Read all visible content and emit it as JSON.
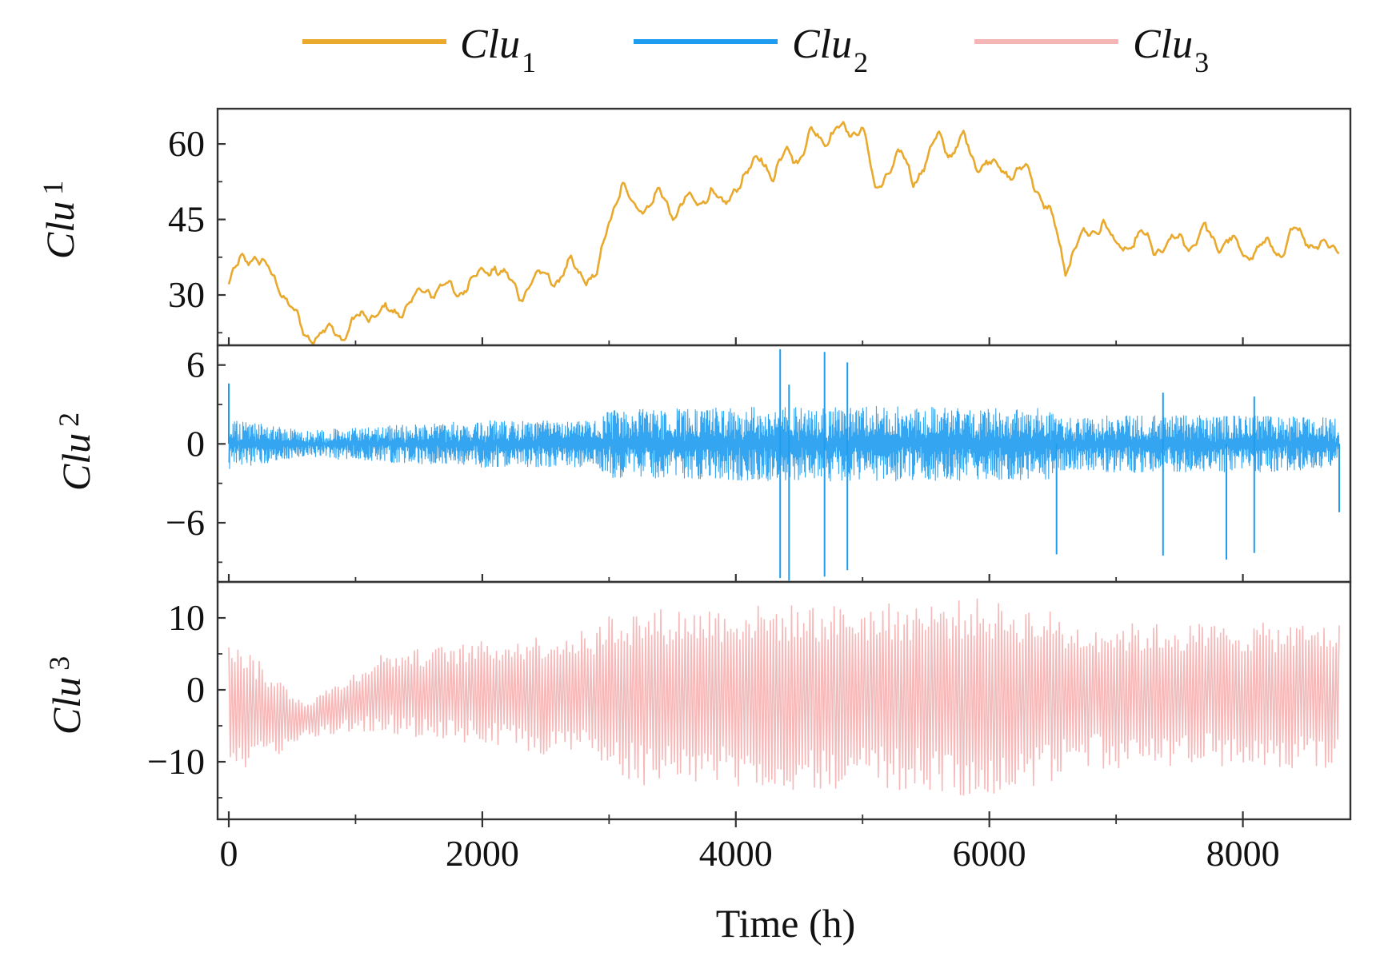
{
  "chart_data": {
    "type": "line",
    "xlabel": "Time (h)",
    "xlim": [
      0,
      8760
    ],
    "x_ticks": [
      "0",
      "2000",
      "4000",
      "6000",
      "8000"
    ],
    "x_tick_values": [
      0,
      2000,
      4000,
      6000,
      8000
    ],
    "legend": [
      {
        "name": "Clu",
        "sub": "1",
        "color": "#E8A92C"
      },
      {
        "name": "Clu",
        "sub": "2",
        "color": "#1E9CF0"
      },
      {
        "name": "Clu",
        "sub": "3",
        "color": "#F6B5B5"
      }
    ],
    "panels": [
      {
        "ylabel": "Clu",
        "ylabel_sub": "1",
        "color": "#E8A92C",
        "ylim": [
          20,
          67
        ],
        "y_ticks": [
          "30",
          "45",
          "60"
        ],
        "y_tick_values": [
          30,
          45,
          60
        ],
        "series_kind": "trend",
        "x": [
          0,
          100,
          200,
          300,
          400,
          500,
          600,
          700,
          800,
          900,
          1000,
          1100,
          1200,
          1300,
          1400,
          1500,
          1600,
          1700,
          1800,
          1900,
          2000,
          2100,
          2200,
          2300,
          2400,
          2500,
          2600,
          2700,
          2800,
          2900,
          3000,
          3100,
          3200,
          3300,
          3400,
          3500,
          3600,
          3700,
          3800,
          3900,
          4000,
          4100,
          4200,
          4300,
          4400,
          4500,
          4600,
          4700,
          4800,
          4900,
          5000,
          5100,
          5200,
          5300,
          5400,
          5500,
          5600,
          5700,
          5800,
          5900,
          6000,
          6100,
          6200,
          6300,
          6400,
          6500,
          6600,
          6700,
          6800,
          6900,
          7000,
          7100,
          7200,
          7300,
          7400,
          7500,
          7600,
          7700,
          7800,
          7900,
          8000,
          8100,
          8200,
          8300,
          8400,
          8500,
          8600,
          8700,
          8760
        ],
        "values": [
          32,
          37,
          38,
          35,
          32,
          27,
          22,
          22,
          23,
          22,
          25,
          26,
          27,
          26,
          28,
          30,
          31,
          32,
          30,
          33,
          34,
          36,
          33,
          30,
          33,
          34,
          33,
          36,
          34,
          33,
          45,
          52,
          47,
          48,
          50,
          46,
          49,
          48,
          51,
          47,
          52,
          54,
          58,
          53,
          59,
          57,
          62,
          61,
          63,
          62,
          64,
          50,
          55,
          58,
          53,
          56,
          62,
          58,
          61,
          56,
          56,
          55,
          54,
          55,
          50,
          45,
          35,
          41,
          42,
          45,
          39,
          40,
          42,
          39,
          40,
          41,
          40,
          43,
          40,
          41,
          38,
          39,
          40,
          38,
          43,
          41,
          40,
          39,
          40
        ],
        "noise_amp": 1.4
      },
      {
        "ylabel": "Clu",
        "ylabel_sub": "2",
        "color": "#1E9CF0",
        "ylim": [
          -10.5,
          7.5
        ],
        "y_ticks": [
          "−6",
          "0",
          "6"
        ],
        "y_tick_values": [
          -6,
          0,
          6
        ],
        "series_kind": "noise",
        "envelope_x": [
          0,
          600,
          1000,
          2000,
          2900,
          3000,
          4000,
          5000,
          6000,
          6500,
          6600,
          7000,
          8000,
          8760
        ],
        "envelope_amp": [
          2.0,
          1.0,
          1.3,
          1.8,
          1.8,
          2.6,
          2.8,
          2.9,
          2.8,
          2.7,
          2.0,
          2.2,
          2.2,
          2.0
        ],
        "spikes": [
          {
            "x": 0,
            "value": 4.6
          },
          {
            "x": 4350,
            "value": 7.2
          },
          {
            "x": 4350,
            "value": -10.2
          },
          {
            "x": 4420,
            "value": -10.4
          },
          {
            "x": 4420,
            "value": 4.5
          },
          {
            "x": 4700,
            "value": 7.0
          },
          {
            "x": 4700,
            "value": -10.1
          },
          {
            "x": 4880,
            "value": 6.2
          },
          {
            "x": 4880,
            "value": -9.6
          },
          {
            "x": 6530,
            "value": -8.4
          },
          {
            "x": 7370,
            "value": 3.9
          },
          {
            "x": 7370,
            "value": -8.5
          },
          {
            "x": 7870,
            "value": -8.8
          },
          {
            "x": 8090,
            "value": -8.3
          },
          {
            "x": 8090,
            "value": 3.6
          },
          {
            "x": 8760,
            "value": -5.2
          }
        ]
      },
      {
        "ylabel": "Clu",
        "ylabel_sub": "3",
        "color": "#F6B5B5",
        "ylim": [
          -18,
          15
        ],
        "y_ticks": [
          "−10",
          "0",
          "10"
        ],
        "y_tick_values": [
          -10,
          0,
          10
        ],
        "series_kind": "oscillation",
        "center_x": [
          0,
          300,
          600,
          900,
          1200,
          8760
        ],
        "center": [
          -1,
          -3,
          -4,
          -2,
          0,
          0
        ],
        "envelope_x": [
          0,
          300,
          600,
          900,
          1200,
          2000,
          2900,
          3000,
          4000,
          5000,
          5900,
          6500,
          6600,
          7000,
          8000,
          8760
        ],
        "envelope_amp": [
          11,
          7,
          3,
          4,
          6,
          8,
          10,
          13,
          14,
          14,
          15,
          13,
          11,
          11,
          11,
          11
        ]
      }
    ]
  }
}
